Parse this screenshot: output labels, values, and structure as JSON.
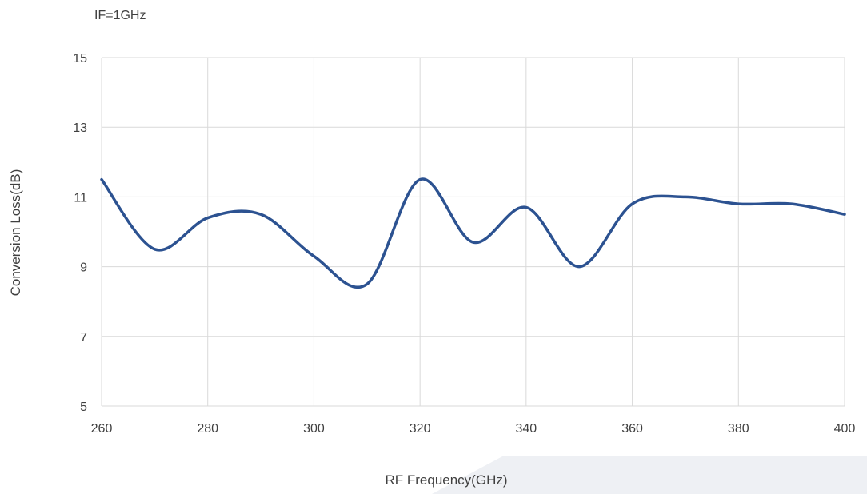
{
  "chart_data": {
    "type": "line",
    "annotation": "IF=1GHz",
    "xlabel": "RF Frequency(GHz)",
    "ylabel": "Conversion Loss(dB)",
    "xlim": [
      260,
      400
    ],
    "ylim": [
      5,
      15
    ],
    "xticks": [
      260,
      280,
      300,
      320,
      340,
      360,
      380,
      400
    ],
    "yticks": [
      5,
      7,
      9,
      11,
      13,
      15
    ],
    "grid": true,
    "series": [
      {
        "color": "#2c5291",
        "x": [
          260,
          270,
          280,
          290,
          300,
          310,
          320,
          330,
          340,
          350,
          360,
          370,
          380,
          390,
          400
        ],
        "y": [
          11.5,
          9.5,
          10.4,
          10.5,
          9.3,
          8.5,
          11.5,
          9.7,
          10.7,
          9.0,
          10.8,
          11.0,
          10.8,
          10.8,
          10.5
        ]
      }
    ]
  }
}
